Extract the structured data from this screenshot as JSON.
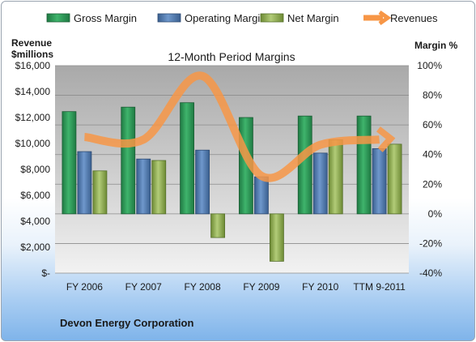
{
  "chart_data": {
    "type": "bar",
    "title": "12-Month Period Margins",
    "categories": [
      "FY 2006",
      "FY 2007",
      "FY 2008",
      "FY 2009",
      "FY 2010",
      "TTM 9-2011"
    ],
    "left_axis": {
      "label_line1": "Revenue",
      "label_line2": "$millions",
      "range": [
        0,
        16000
      ],
      "ticks": [
        0,
        2000,
        4000,
        6000,
        8000,
        10000,
        12000,
        14000,
        16000
      ],
      "tick_labels": [
        "$-",
        "$2,000",
        "$4,000",
        "$6,000",
        "$8,000",
        "$10,000",
        "$12,000",
        "$14,000",
        "$16,000"
      ]
    },
    "right_axis": {
      "label": "Margin %",
      "range": [
        -40,
        100
      ],
      "ticks": [
        -40,
        -20,
        0,
        20,
        40,
        60,
        80,
        100
      ],
      "tick_labels": [
        "-40%",
        "-20%",
        "0%",
        "20%",
        "40%",
        "60%",
        "80%",
        "100%"
      ]
    },
    "series": [
      {
        "name": "Gross Margin",
        "kind": "bar",
        "axis": "right",
        "color": "#2e9e5b",
        "values": [
          69,
          72,
          75,
          65,
          66,
          66
        ]
      },
      {
        "name": "Operating Margin",
        "kind": "bar",
        "axis": "right",
        "color": "#4f81bd",
        "values": [
          42,
          37,
          43,
          25,
          41,
          44
        ]
      },
      {
        "name": "Net Margin",
        "kind": "bar",
        "axis": "right",
        "color": "#9bbb59",
        "values": [
          29,
          36,
          -16,
          -32,
          50,
          47
        ]
      },
      {
        "name": "Revenues",
        "kind": "line",
        "axis": "left",
        "color": "#f79646",
        "values": [
          10500,
          10300,
          15200,
          7500,
          9900,
          10300
        ]
      }
    ],
    "grid": true,
    "legend": "top"
  },
  "footer": "Devon Energy Corporation"
}
